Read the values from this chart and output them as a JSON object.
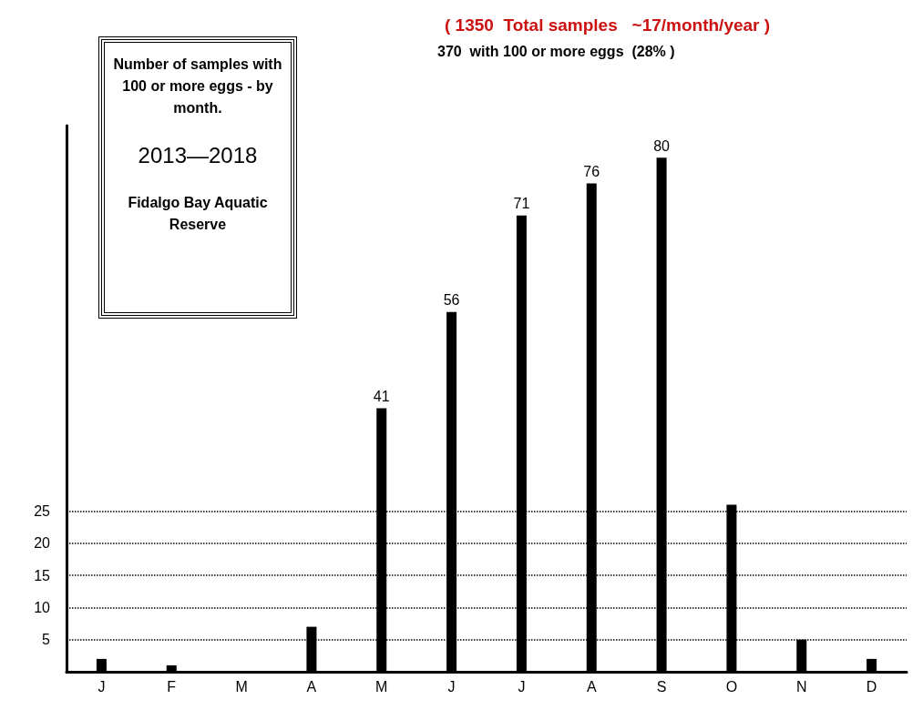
{
  "chart_data": {
    "type": "bar",
    "title": "Number of samples with 100 or more eggs  - by month.",
    "subtitle": "2013—2018",
    "annotations": [
      "( 1350  Total samples   ~17/month/year )",
      "370  with 100 or more eggs  (28% )",
      "Fidalgo Bay Aquatic Reserve"
    ],
    "categories": [
      "J",
      "F",
      "M",
      "A",
      "M",
      "J",
      "J",
      "A",
      "S",
      "O",
      "N",
      "D"
    ],
    "values": [
      2,
      1,
      0,
      7,
      41,
      56,
      71,
      76,
      80,
      26,
      5,
      2
    ],
    "value_labels": [
      null,
      null,
      null,
      null,
      "41",
      "56",
      "71",
      "76",
      "80",
      null,
      null,
      null
    ],
    "color": "#000000",
    "ylim": [
      0,
      85
    ],
    "yticks": [
      5,
      10,
      15,
      20,
      25
    ],
    "grid": "y"
  }
}
